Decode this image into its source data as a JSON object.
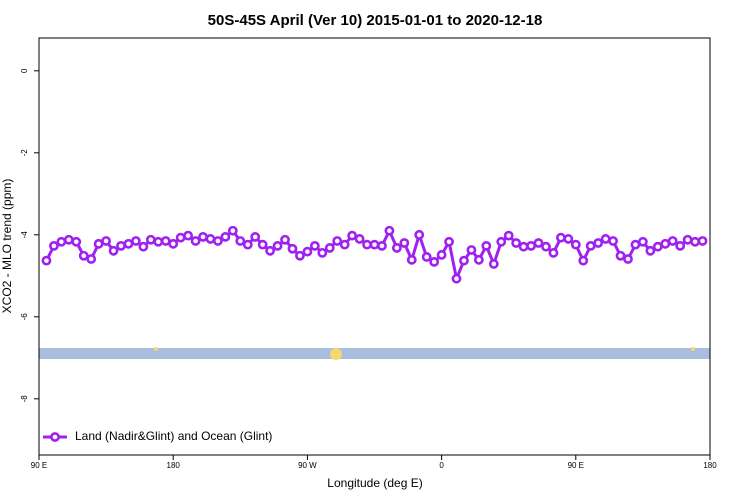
{
  "chart_data": {
    "type": "line",
    "title": "50S-45S April (Ver 10)   2015-01-01 to 2020-12-18",
    "x_label": "Longitude (deg E)",
    "y_label": "XCO2 - MLO trend (ppm)",
    "x": [
      95,
      100,
      105,
      110,
      115,
      120,
      125,
      130,
      135,
      140,
      145,
      150,
      155,
      160,
      165,
      170,
      175,
      180,
      185,
      190,
      195,
      200,
      205,
      210,
      215,
      220,
      225,
      230,
      235,
      240,
      245,
      250,
      255,
      260,
      265,
      270,
      275,
      280,
      285,
      290,
      295,
      300,
      305,
      310,
      315,
      320,
      325,
      330,
      335,
      340,
      345,
      350,
      355,
      360,
      365,
      370,
      375,
      380,
      385,
      390,
      395,
      400,
      405,
      410,
      415,
      420,
      425,
      430,
      435,
      440,
      445,
      450,
      455,
      460,
      465,
      470,
      475,
      480,
      485,
      490,
      495,
      500,
      505,
      510,
      515,
      520,
      525,
      530,
      535
    ],
    "series": [
      {
        "name": "Land (Nadir&Glint) and Ocean (Glint)",
        "color": "#a020f0",
        "values": [
          -4.63,
          -4.27,
          -4.17,
          -4.12,
          -4.17,
          -4.51,
          -4.59,
          -4.22,
          -4.15,
          -4.39,
          -4.27,
          -4.22,
          -4.15,
          -4.29,
          -4.12,
          -4.17,
          -4.15,
          -4.22,
          -4.07,
          -4.02,
          -4.15,
          -4.05,
          -4.1,
          -4.15,
          -4.05,
          -3.9,
          -4.15,
          -4.24,
          -4.05,
          -4.24,
          -4.39,
          -4.27,
          -4.12,
          -4.34,
          -4.51,
          -4.41,
          -4.27,
          -4.44,
          -4.32,
          -4.15,
          -4.24,
          -4.02,
          -4.1,
          -4.24,
          -4.24,
          -4.27,
          -3.9,
          -4.32,
          -4.2,
          -4.61,
          -4,
          -4.54,
          -4.66,
          -4.49,
          -4.17,
          -5.07,
          -4.63,
          -4.37,
          -4.61,
          -4.27,
          -4.71,
          -4.17,
          -4.02,
          -4.2,
          -4.29,
          -4.27,
          -4.2,
          -4.29,
          -4.44,
          -4.07,
          -4.1,
          -4.24,
          -4.63,
          -4.27,
          -4.2,
          -4.1,
          -4.15,
          -4.51,
          -4.59,
          -4.24,
          -4.17,
          -4.39,
          -4.29,
          -4.22,
          -4.15,
          -4.27,
          -4.12,
          -4.17,
          -4.15
        ]
      }
    ],
    "xlim": [
      90,
      540
    ],
    "xticks": [
      {
        "value": 90,
        "label": "90 E"
      },
      180,
      {
        "value": 270,
        "label": "90 W"
      },
      {
        "value": 360,
        "label": "0"
      },
      {
        "value": 450,
        "label": "90 E"
      },
      {
        "value": 540,
        "label": "180"
      }
    ],
    "ylim": [
      -9.37,
      0.8
    ],
    "yticks": [
      0,
      -2,
      -4,
      -6,
      -8
    ],
    "legend": "bottomleft"
  }
}
